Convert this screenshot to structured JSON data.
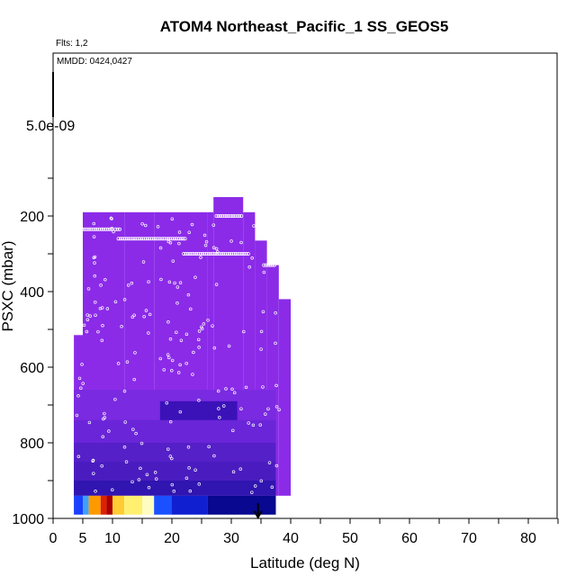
{
  "chart_data": {
    "type": "heatmap",
    "title": "ATOM4 Northeast_Pacific_1 SS_GEOS5",
    "flights_note": "Flts: 1,2",
    "date_note": "MMDD: 0424,0427",
    "colorscale_max_label": "5.0e-09",
    "xlabel": "Latitude (deg N)",
    "ylabel": "PSXC (mbar)",
    "xlim": [
      0,
      85
    ],
    "ylim": [
      1000,
      0
    ],
    "x_tick_labels": [
      "0",
      "5",
      "10",
      "20",
      "30",
      "40",
      "50",
      "60",
      "70",
      "80"
    ],
    "y_tick_labels": [
      "200",
      "400",
      "600",
      "800",
      "1000"
    ],
    "x_marker": 34.5,
    "colors": {
      "background_fill": "#8b2be8",
      "low": "#8b2be8",
      "mid_low": "#5a20d0",
      "mid": "#3a10c0",
      "high_blue": "#0a0aa0",
      "light_blue": "#4a90ff",
      "yellow": "#ffe060",
      "orange": "#ff8800",
      "red": "#cc1100",
      "points": "#ffffff"
    },
    "columns": [
      {
        "x0": 3.5,
        "x1": 5.0,
        "top": 515
      },
      {
        "x0": 5.0,
        "x1": 12.0,
        "top": 190
      },
      {
        "x0": 12.0,
        "x1": 17.0,
        "top": 190
      },
      {
        "x0": 17.0,
        "x1": 26.0,
        "top": 190
      },
      {
        "x0": 26.0,
        "x1": 27.0,
        "top": 190
      },
      {
        "x0": 27.0,
        "x1": 32.0,
        "top": 150
      },
      {
        "x0": 32.0,
        "x1": 34.0,
        "top": 190
      },
      {
        "x0": 34.0,
        "x1": 36.0,
        "top": 265
      },
      {
        "x0": 36.0,
        "x1": 38.0,
        "top": 330
      },
      {
        "x0": 38.0,
        "x1": 40.0,
        "top": 420
      }
    ],
    "bands": [
      {
        "x0": 3.5,
        "x1": 37.5,
        "p0": 660,
        "p1": 740,
        "color": "#7a2ae0"
      },
      {
        "x0": 3.5,
        "x1": 37.5,
        "p0": 740,
        "p1": 800,
        "color": "#6a25d8"
      },
      {
        "x0": 3.5,
        "x1": 37.5,
        "p0": 800,
        "p1": 850,
        "color": "#5520c8"
      },
      {
        "x0": 3.5,
        "x1": 37.5,
        "p0": 850,
        "p1": 900,
        "color": "#4a1cc0"
      },
      {
        "x0": 3.5,
        "x1": 37.5,
        "p0": 900,
        "p1": 940,
        "color": "#3015b0"
      },
      {
        "x0": 18.0,
        "x1": 31.0,
        "p0": 690,
        "p1": 740,
        "color": "#3a12b8"
      }
    ],
    "surface_strip": {
      "p0": 940,
      "p1": 990,
      "segments": [
        {
          "x0": 3.5,
          "x1": 5.0,
          "color": "#1a40ff"
        },
        {
          "x0": 5.0,
          "x1": 6.0,
          "color": "#40a0ff"
        },
        {
          "x0": 6.0,
          "x1": 8.0,
          "color": "#ff9900"
        },
        {
          "x0": 8.0,
          "x1": 9.0,
          "color": "#dd2200"
        },
        {
          "x0": 9.0,
          "x1": 10.0,
          "color": "#aa0000"
        },
        {
          "x0": 10.0,
          "x1": 12.0,
          "color": "#ffcc33"
        },
        {
          "x0": 12.0,
          "x1": 15.0,
          "color": "#fff070"
        },
        {
          "x0": 15.0,
          "x1": 17.0,
          "color": "#fffcc0"
        },
        {
          "x0": 17.0,
          "x1": 20.0,
          "color": "#1a50ff"
        },
        {
          "x0": 20.0,
          "x1": 26.0,
          "color": "#1020d0"
        },
        {
          "x0": 26.0,
          "x1": 37.5,
          "color": "#080890"
        }
      ]
    },
    "flight_tracks": [
      {
        "x0": 5.0,
        "x1": 10.0,
        "p": 235
      },
      {
        "x0": 10.5,
        "x1": 11.5,
        "p": 235
      },
      {
        "x0": 11.0,
        "x1": 22.5,
        "p": 260
      },
      {
        "x0": 22.0,
        "x1": 33.0,
        "p": 300
      },
      {
        "x0": 27.5,
        "x1": 32.0,
        "p": 200
      },
      {
        "x0": 35.5,
        "x1": 37.5,
        "p": 330
      },
      {
        "x0": 39.0,
        "x1": 40.0,
        "p": 330
      }
    ]
  }
}
